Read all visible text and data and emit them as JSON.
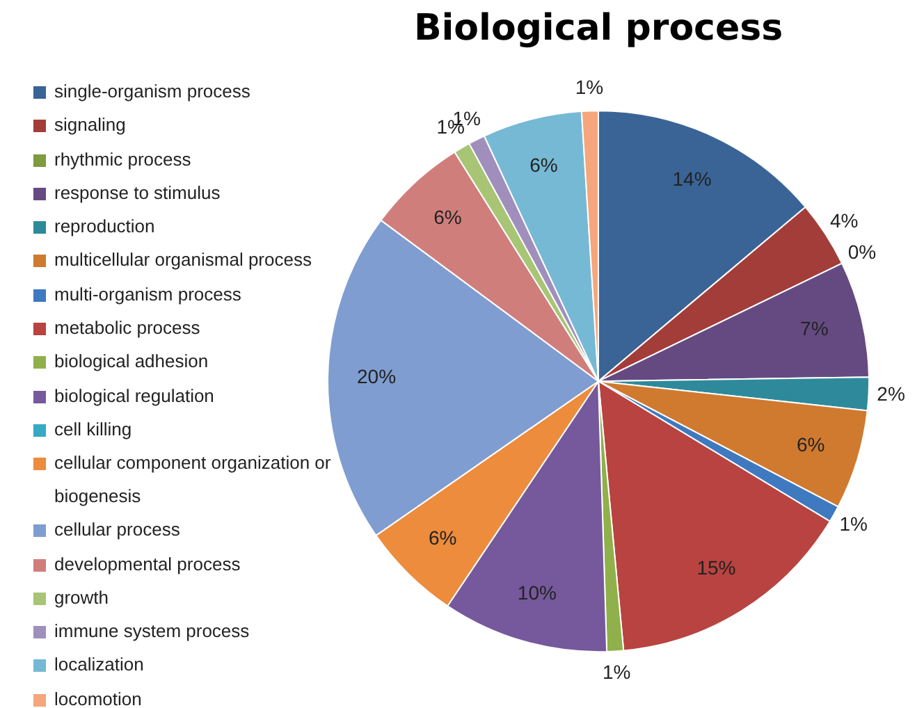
{
  "chart_data": {
    "type": "pie",
    "title": "Biological process",
    "legend": "left",
    "categories": [
      "single-organism process",
      "signaling",
      "rhythmic process",
      "response to stimulus",
      "reproduction",
      "multicellular organismal process",
      "multi-organism process",
      "metabolic process",
      "biological adhesion",
      "biological regulation",
      "cell killing",
      "cellular component organization or biogenesis",
      "cellular process",
      "developmental process",
      "growth",
      "immune system process",
      "localization",
      "locomotion"
    ],
    "values": [
      14,
      4,
      0,
      7,
      2,
      6,
      1,
      15,
      1,
      10,
      0,
      6,
      20,
      6,
      1,
      1,
      6,
      1
    ],
    "value_labels": [
      "14%",
      "4%",
      "0%",
      "7%",
      "2%",
      "6%",
      "1%",
      "15%",
      "1%",
      "10%",
      null,
      "6%",
      "20%",
      "6%",
      "1%",
      "1%",
      "6%",
      "1%"
    ],
    "colors": [
      "#3a6496",
      "#a33d3a",
      "#7f9a3f",
      "#654a82",
      "#2e8a9a",
      "#d07a30",
      "#3f79c0",
      "#b84340",
      "#8fb04a",
      "#76599c",
      "#36a9c4",
      "#ec8c3c",
      "#7f9dd0",
      "#d07e7c",
      "#a7c575",
      "#a08fbc",
      "#76b9d4",
      "#f5a67c"
    ]
  }
}
